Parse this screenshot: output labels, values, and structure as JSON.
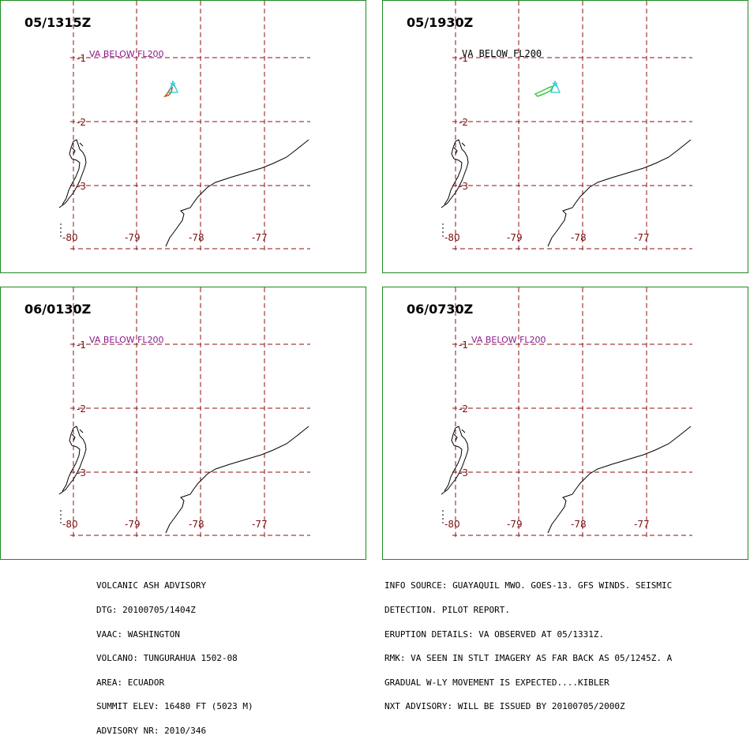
{
  "panels": [
    {
      "time": "05/1315Z",
      "va_label": "VA BELOW FL200",
      "va_style": "purple",
      "plume_color": "#b05a1a"
    },
    {
      "time": "05/1930Z",
      "va_label": "VA BELOW FL200",
      "va_style": "black",
      "plume_color": "#3cc83c"
    },
    {
      "time": "06/0130Z",
      "va_label": "VA BELOW FL200",
      "va_style": "purple",
      "plume_color": "#26c8d8"
    },
    {
      "time": "06/0730Z",
      "va_label": "VA BELOW FL200",
      "va_style": "purple",
      "plume_color": "#c026c8"
    }
  ],
  "grid": {
    "lat_labels": [
      "-1",
      "-2",
      "-3"
    ],
    "lon_labels": [
      "-80",
      "-79",
      "-78",
      "-77"
    ],
    "grid_color": "#8a1010",
    "outline_color": "#1f8a1f",
    "volcano_color": "#26c8d8"
  },
  "footer_left": [
    "VOLCANIC ASH ADVISORY",
    "DTG: 20100705/1404Z",
    "VAAC: WASHINGTON",
    "VOLCANO: TUNGURAHUA 1502-08",
    "AREA: ECUADOR",
    "SUMMIT ELEV: 16480 FT (5023 M)",
    "ADVISORY NR: 2010/346"
  ],
  "footer_right": [
    "INFO SOURCE: GUAYAQUIL MWO. GOES-13. GFS WINDS. SEISMIC",
    "DETECTION. PILOT REPORT.",
    "ERUPTION DETAILS: VA OBSERVED AT 05/1331Z.",
    "RMK: VA SEEN IN STLT IMAGERY AS FAR BACK AS 05/1245Z. A",
    "GRADUAL W-LY MOVEMENT IS EXPECTED....KIBLER",
    "NXT ADVISORY: WILL BE ISSUED BY 20100705/2000Z"
  ]
}
